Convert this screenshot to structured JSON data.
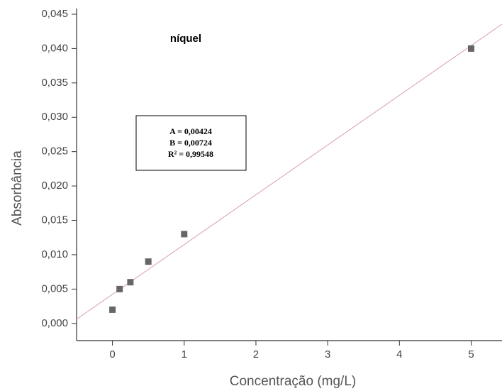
{
  "chart_data": {
    "type": "scatter",
    "title": "níquel",
    "x_label": "Concentração (mg/L)",
    "y_label": "Absorbância",
    "x": [
      0,
      0.1,
      0.25,
      0.5,
      1,
      5
    ],
    "series": [
      {
        "name": "níquel",
        "color": "#666666",
        "values": [
          0.002,
          0.005,
          0.006,
          0.009,
          0.013,
          0.04
        ]
      }
    ],
    "fit": {
      "intercept": 0.00424,
      "slope": 0.00724,
      "color": "#d9a0a8"
    },
    "annotations": [
      "A = 0,00424",
      "B = 0,00724",
      "R² = 0,99548"
    ],
    "xlim": [
      -0.5,
      5.43
    ],
    "ylim": [
      -0.0025,
      0.045
    ],
    "xticks": [
      0,
      1,
      2,
      3,
      4,
      5
    ],
    "yticks": [
      {
        "value": 0.0,
        "label": "0,000"
      },
      {
        "value": 0.005,
        "label": "0,005"
      },
      {
        "value": 0.01,
        "label": "0,010"
      },
      {
        "value": 0.015,
        "label": "0,015"
      },
      {
        "value": 0.02,
        "label": "0,020"
      },
      {
        "value": 0.025,
        "label": "0,025"
      },
      {
        "value": 0.03,
        "label": "0,030"
      },
      {
        "value": 0.035,
        "label": "0,035"
      },
      {
        "value": 0.04,
        "label": "0,040"
      },
      {
        "value": 0.045,
        "label": "0,045"
      }
    ]
  }
}
